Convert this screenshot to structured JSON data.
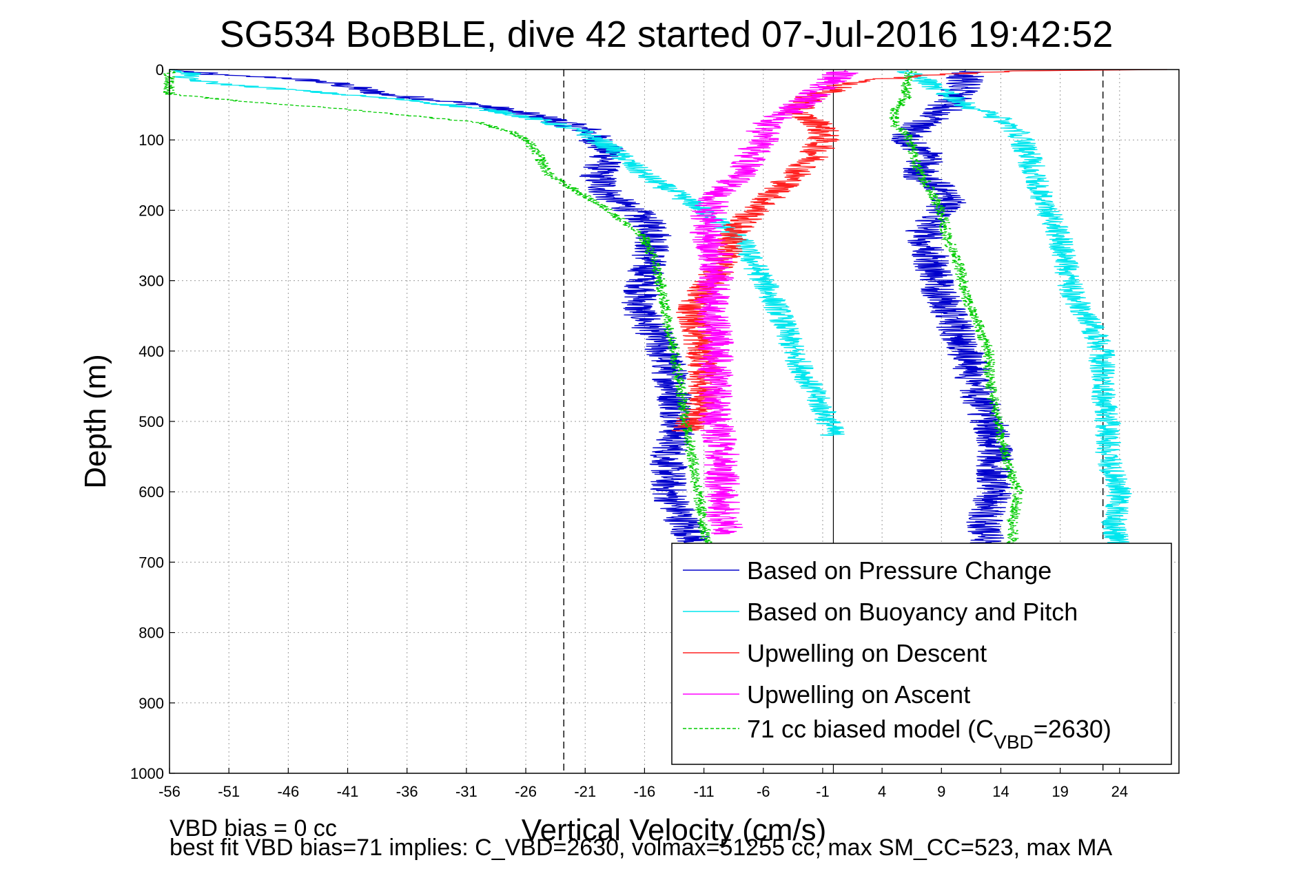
{
  "chart_data": {
    "type": "line",
    "title": "SG534 BoBBLE, dive 42 started 07-Jul-2016 19:42:52",
    "xlabel": "Vertical Velocity (cm/s)",
    "ylabel": "Depth (m)",
    "xlim": [
      -56,
      29
    ],
    "ylim": [
      0,
      1000
    ],
    "y_reversed": true,
    "grid": true,
    "x_ticks": [
      -56,
      -51,
      -46,
      -41,
      -36,
      -31,
      -26,
      -21,
      -16,
      -11,
      -6,
      -1,
      4,
      9,
      14,
      19,
      24
    ],
    "y_ticks": [
      0,
      100,
      200,
      300,
      400,
      500,
      600,
      700,
      800,
      900,
      1000
    ],
    "reference_lines": {
      "zero_solid": -0.1,
      "dashed": [
        -22.8,
        22.6
      ]
    },
    "legend_position": "bottom-right",
    "series": [
      {
        "name": "Based on Pressure Change",
        "color": "#0000cc",
        "style": "solid",
        "jitter": 1.6,
        "descent": [
          [
            0,
            -56
          ],
          [
            8,
            -52
          ],
          [
            12,
            -46
          ],
          [
            20,
            -42
          ],
          [
            35,
            -38
          ],
          [
            50,
            -30
          ],
          [
            70,
            -24
          ],
          [
            85,
            -21
          ],
          [
            100,
            -20
          ],
          [
            120,
            -19
          ],
          [
            150,
            -20
          ],
          [
            180,
            -19
          ],
          [
            200,
            -17
          ],
          [
            230,
            -15
          ],
          [
            260,
            -15.5
          ],
          [
            300,
            -16
          ],
          [
            340,
            -16.5
          ],
          [
            380,
            -15
          ],
          [
            420,
            -14
          ],
          [
            460,
            -13.5
          ],
          [
            500,
            -13
          ],
          [
            550,
            -14
          ],
          [
            600,
            -14
          ],
          [
            650,
            -12.5
          ],
          [
            680,
            -11.5
          ]
        ],
        "ascent": [
          [
            680,
            13
          ],
          [
            650,
            12.5
          ],
          [
            600,
            13.5
          ],
          [
            550,
            13.5
          ],
          [
            500,
            13
          ],
          [
            460,
            12
          ],
          [
            420,
            11.5
          ],
          [
            380,
            10.5
          ],
          [
            340,
            9.5
          ],
          [
            300,
            8.5
          ],
          [
            260,
            8
          ],
          [
            230,
            7.5
          ],
          [
            200,
            9
          ],
          [
            180,
            10
          ],
          [
            150,
            7
          ],
          [
            120,
            8
          ],
          [
            100,
            6
          ],
          [
            80,
            7
          ],
          [
            60,
            9
          ],
          [
            40,
            10
          ],
          [
            20,
            11
          ],
          [
            0,
            11
          ]
        ]
      },
      {
        "name": "Based on Buoyancy and Pitch",
        "color": "#00e6ee",
        "style": "solid",
        "jitter": 1.1,
        "descent": [
          [
            0,
            -56
          ],
          [
            5,
            -54
          ],
          [
            12,
            -55
          ],
          [
            20,
            -52
          ],
          [
            30,
            -45
          ],
          [
            45,
            -35
          ],
          [
            60,
            -28
          ],
          [
            75,
            -24
          ],
          [
            90,
            -21
          ],
          [
            110,
            -19
          ],
          [
            150,
            -16
          ],
          [
            180,
            -13
          ],
          [
            200,
            -11
          ],
          [
            240,
            -8
          ],
          [
            300,
            -6
          ],
          [
            350,
            -4.5
          ],
          [
            400,
            -3.5
          ],
          [
            450,
            -2
          ],
          [
            500,
            -0.5
          ],
          [
            520,
            -0.1
          ]
        ],
        "ascent": [
          [
            690,
            24
          ],
          [
            640,
            23.5
          ],
          [
            600,
            24
          ],
          [
            550,
            23
          ],
          [
            500,
            23
          ],
          [
            450,
            22.5
          ],
          [
            400,
            22.5
          ],
          [
            360,
            21.5
          ],
          [
            320,
            20
          ],
          [
            280,
            19.5
          ],
          [
            240,
            19
          ],
          [
            200,
            18
          ],
          [
            160,
            17
          ],
          [
            130,
            16.5
          ],
          [
            110,
            16
          ],
          [
            90,
            15.5
          ],
          [
            70,
            14
          ],
          [
            50,
            11
          ],
          [
            30,
            9
          ],
          [
            10,
            7
          ],
          [
            0,
            6
          ]
        ]
      },
      {
        "name": "Upwelling on Descent",
        "color": "#ff2020",
        "style": "solid",
        "jitter": 1.4,
        "descent": [
          [
            0,
            28
          ],
          [
            2,
            15
          ],
          [
            10,
            6
          ],
          [
            20,
            1
          ],
          [
            40,
            -2
          ],
          [
            60,
            -3.5
          ],
          [
            80,
            -1
          ],
          [
            100,
            -1
          ],
          [
            130,
            -2
          ],
          [
            160,
            -4
          ],
          [
            190,
            -6
          ],
          [
            220,
            -8
          ],
          [
            250,
            -9
          ],
          [
            280,
            -9.5
          ],
          [
            310,
            -11
          ],
          [
            340,
            -12
          ],
          [
            380,
            -11.5
          ],
          [
            420,
            -11
          ],
          [
            460,
            -11
          ],
          [
            500,
            -12
          ],
          [
            515,
            -12.5
          ]
        ]
      },
      {
        "name": "Upwelling on Ascent",
        "color": "#ff00ff",
        "style": "solid",
        "jitter": 1.5,
        "ascent": [
          [
            660,
            -9
          ],
          [
            620,
            -9.5
          ],
          [
            580,
            -9.5
          ],
          [
            540,
            -9.5
          ],
          [
            500,
            -10
          ],
          [
            460,
            -10
          ],
          [
            420,
            -10
          ],
          [
            380,
            -10
          ],
          [
            340,
            -10.5
          ],
          [
            300,
            -10
          ],
          [
            260,
            -10
          ],
          [
            230,
            -11
          ],
          [
            200,
            -10.5
          ],
          [
            170,
            -9.5
          ],
          [
            150,
            -8
          ],
          [
            120,
            -7
          ],
          [
            100,
            -6
          ],
          [
            80,
            -6
          ],
          [
            60,
            -4
          ],
          [
            40,
            -2
          ],
          [
            20,
            -0.5
          ],
          [
            0,
            1
          ]
        ]
      },
      {
        "name": "71 cc biased model (C_VBD=2630)",
        "legend_base": "71 cc biased model (C",
        "legend_sub": "VBD",
        "legend_tail": "=2630)",
        "color": "#00cc00",
        "style": "dashed",
        "jitter": 0.5,
        "descent": [
          [
            0,
            -56
          ],
          [
            35,
            -56
          ],
          [
            45,
            -50
          ],
          [
            55,
            -42
          ],
          [
            65,
            -36
          ],
          [
            75,
            -30
          ],
          [
            90,
            -27
          ],
          [
            100,
            -26
          ],
          [
            120,
            -25
          ],
          [
            150,
            -24
          ],
          [
            180,
            -21
          ],
          [
            200,
            -19
          ],
          [
            240,
            -16
          ],
          [
            280,
            -15
          ],
          [
            320,
            -14.5
          ],
          [
            360,
            -14
          ],
          [
            400,
            -13.5
          ],
          [
            450,
            -13
          ],
          [
            500,
            -12.5
          ],
          [
            550,
            -12
          ],
          [
            600,
            -11.5
          ],
          [
            650,
            -11
          ],
          [
            690,
            -10.5
          ]
        ],
        "ascent": [
          [
            690,
            15
          ],
          [
            640,
            15
          ],
          [
            600,
            15.5
          ],
          [
            560,
            14.5
          ],
          [
            520,
            14
          ],
          [
            480,
            13.5
          ],
          [
            440,
            13
          ],
          [
            400,
            13
          ],
          [
            360,
            12
          ],
          [
            320,
            11
          ],
          [
            280,
            10.5
          ],
          [
            240,
            9.5
          ],
          [
            200,
            9
          ],
          [
            170,
            8
          ],
          [
            140,
            7
          ],
          [
            110,
            6.5
          ],
          [
            90,
            6
          ],
          [
            80,
            5
          ],
          [
            60,
            5
          ],
          [
            40,
            6
          ],
          [
            20,
            6
          ],
          [
            0,
            6.5
          ]
        ]
      }
    ],
    "footer_lines": [
      "VBD bias = 0 cc",
      "best fit VBD bias=71 implies: C_VBD=2630, volmax=51255 cc, max SM_CC=523, max MA"
    ]
  }
}
